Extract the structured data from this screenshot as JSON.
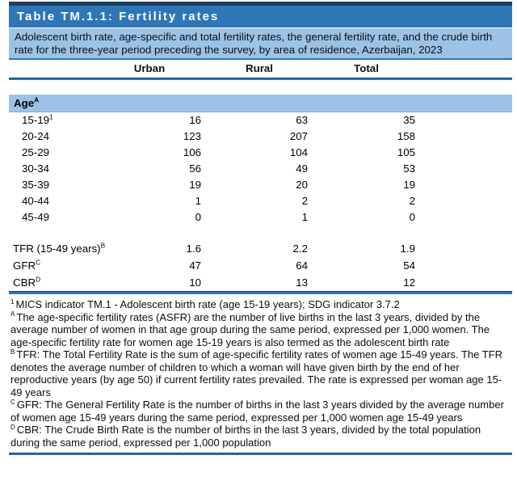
{
  "table": {
    "title": "Table TM.1.1: Fertility rates",
    "subtitle": "Adolescent birth rate, age-specific and total fertility rates, the general fertility rate, and the crude birth rate for the three-year period preceding the survey, by area of residence, Azerbaijan, 2023",
    "columns": [
      "Urban",
      "Rural",
      "Total"
    ],
    "section_header": {
      "label": "Age",
      "sup": "A"
    },
    "age_rows": [
      {
        "label": "15-19",
        "sup": "1",
        "urban": "16",
        "rural": "63",
        "total": "35"
      },
      {
        "label": "20-24",
        "sup": "",
        "urban": "123",
        "rural": "207",
        "total": "158"
      },
      {
        "label": "25-29",
        "sup": "",
        "urban": "106",
        "rural": "104",
        "total": "105"
      },
      {
        "label": "30-34",
        "sup": "",
        "urban": "56",
        "rural": "49",
        "total": "53"
      },
      {
        "label": "35-39",
        "sup": "",
        "urban": "19",
        "rural": "20",
        "total": "19"
      },
      {
        "label": "40-44",
        "sup": "",
        "urban": "1",
        "rural": "2",
        "total": "2"
      },
      {
        "label": "45-49",
        "sup": "",
        "urban": "0",
        "rural": "1",
        "total": "0"
      }
    ],
    "summary_rows": [
      {
        "label": "TFR (15-49 years)",
        "sup": "B",
        "urban": "1.6",
        "rural": "2.2",
        "total": "1.9"
      },
      {
        "label": "GFR",
        "sup": "C",
        "urban": "47",
        "rural": "64",
        "total": "54"
      },
      {
        "label": "CBR",
        "sup": "D",
        "urban": "10",
        "rural": "13",
        "total": "12"
      }
    ],
    "footnotes": [
      {
        "marker": "1",
        "text": "MICS indicator TM.1 - Adolescent birth rate (age 15-19 years); SDG indicator 3.7.2"
      },
      {
        "marker": "A",
        "text": "The age-specific fertility rates (ASFR) are the number of live births in the last 3 years, divided by the average number of women in that age group during the same period, expressed per 1,000 women. The age-specific fertility rate for women age 15-19 years is also termed as the adolescent birth rate"
      },
      {
        "marker": "B",
        "text": "TFR: The Total Fertility Rate is the sum of age-specific fertility rates of women age 15-49 years. The TFR denotes the average number of children to which a woman will have given birth by the end of her reproductive years (by age 50) if current fertility rates prevailed. The rate is expressed per woman age 15-49 years"
      },
      {
        "marker": "C",
        "text": "GFR: The General Fertility Rate is the number of births in the last 3 years divided by the average number of women age 15-49 years during the same period, expressed per 1,000 women age 15-49 years"
      },
      {
        "marker": "D",
        "text": "CBR: The Crude Birth Rate is the number of births in the last 3 years, divided by the total population during the same period, expressed per 1,000 population"
      }
    ],
    "colors": {
      "title_bar": "#2E76B8",
      "band": "#9CC3E6",
      "rule_dark": "#1D3D63",
      "rule_blue": "#2E76B8",
      "title_text": "#FFFFFF"
    }
  }
}
